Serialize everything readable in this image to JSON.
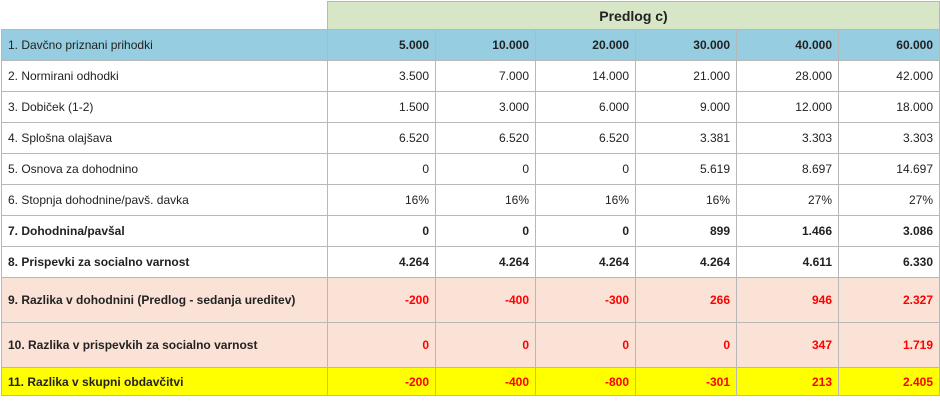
{
  "header": {
    "title": "Predlog c)"
  },
  "columns": [
    "5.000",
    "10.000",
    "20.000",
    "30.000",
    "40.000",
    "60.000"
  ],
  "rows": [
    {
      "label": "1. Davčno priznani prihodki",
      "values": [
        "5.000",
        "10.000",
        "20.000",
        "30.000",
        "40.000",
        "60.000"
      ]
    },
    {
      "label": "2. Normirani odhodki",
      "values": [
        "3.500",
        "7.000",
        "14.000",
        "21.000",
        "28.000",
        "42.000"
      ]
    },
    {
      "label": "3. Dobiček (1-2)",
      "values": [
        "1.500",
        "3.000",
        "6.000",
        "9.000",
        "12.000",
        "18.000"
      ]
    },
    {
      "label": "4. Splošna olajšava",
      "values": [
        "6.520",
        "6.520",
        "6.520",
        "3.381",
        "3.303",
        "3.303"
      ]
    },
    {
      "label": "5. Osnova za dohodnino",
      "values": [
        "0",
        "0",
        "0",
        "5.619",
        "8.697",
        "14.697"
      ]
    },
    {
      "label": "6. Stopnja dohodnine/pavš. davka",
      "values": [
        "16%",
        "16%",
        "16%",
        "16%",
        "27%",
        "27%"
      ]
    },
    {
      "label": "7. Dohodnina/pavšal",
      "values": [
        "0",
        "0",
        "0",
        "899",
        "1.466",
        "3.086"
      ]
    },
    {
      "label": "8. Prispevki za socialno varnost",
      "values": [
        "4.264",
        "4.264",
        "4.264",
        "4.264",
        "4.611",
        "6.330"
      ]
    },
    {
      "label": "9. Razlika v dohodnini (Predlog - sedanja ureditev)",
      "values": [
        "-200",
        "-400",
        "-300",
        "266",
        "946",
        "2.327"
      ]
    },
    {
      "label": "10. Razlika v prispevkih za socialno varnost",
      "values": [
        "0",
        "0",
        "0",
        "0",
        "347",
        "1.719"
      ]
    },
    {
      "label": "11. Razlika v skupni obdavčitvi",
      "values": [
        "-200",
        "-400",
        "-800",
        "-301",
        "213",
        "2.405"
      ]
    }
  ]
}
